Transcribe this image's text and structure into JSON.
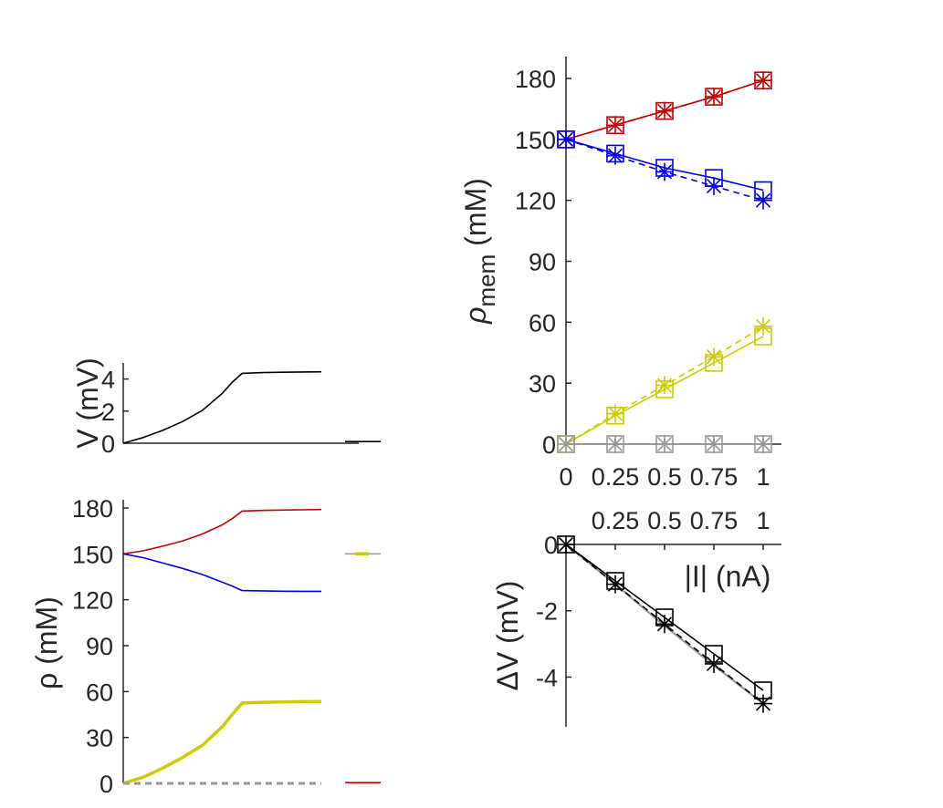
{
  "colors": {
    "red": "#c00000",
    "blue": "#0000e6",
    "yellow": "#cccc00",
    "gray": "#999999",
    "black": "#000000",
    "axis": "#262626"
  },
  "chart_data": [
    {
      "id": "voltage_trace",
      "type": "line",
      "title": "",
      "xlabel": "",
      "ylabel": "V (mV)",
      "ylim": [
        0,
        5
      ],
      "yticks": [
        "0",
        "2",
        "4"
      ],
      "grid": false,
      "series": [
        {
          "color": "black",
          "x": [
            0,
            0.1,
            0.2,
            0.3,
            0.4,
            0.5,
            0.55,
            0.6,
            0.7,
            0.8,
            0.9,
            1.0
          ],
          "y": [
            0,
            0.35,
            0.8,
            1.35,
            2.05,
            3.1,
            3.8,
            4.35,
            4.4,
            4.42,
            4.44,
            4.45
          ]
        },
        {
          "color": "black",
          "x": [
            1.12,
            1.3
          ],
          "y": [
            0.1,
            0.1
          ]
        }
      ]
    },
    {
      "id": "concentration_trace",
      "type": "line",
      "title": "",
      "xlabel": "",
      "ylabel": "ρ (mM)",
      "ylim": [
        0,
        180
      ],
      "yticks": [
        "0",
        "30",
        "60",
        "90",
        "120",
        "150",
        "180"
      ],
      "grid": false,
      "series": [
        {
          "color": "red",
          "x": [
            0,
            0.1,
            0.2,
            0.3,
            0.4,
            0.5,
            0.55,
            0.6,
            0.7,
            0.8,
            0.9,
            1.0
          ],
          "y": [
            150,
            152,
            155,
            158.5,
            163,
            169,
            173,
            178,
            178.4,
            178.6,
            178.8,
            179
          ]
        },
        {
          "color": "blue",
          "x": [
            0,
            0.1,
            0.2,
            0.3,
            0.4,
            0.5,
            0.55,
            0.6,
            0.7,
            0.8,
            0.9,
            1.0
          ],
          "y": [
            150,
            147.5,
            144,
            140.5,
            136.5,
            131.5,
            129,
            126,
            125.8,
            125.6,
            125.5,
            125.5
          ]
        },
        {
          "color": "yellow",
          "x": [
            0,
            0.1,
            0.2,
            0.3,
            0.4,
            0.5,
            0.55,
            0.6,
            0.7,
            0.8,
            0.9,
            1.0
          ],
          "y": [
            0,
            4,
            10,
            17,
            25,
            37,
            45,
            52.5,
            53,
            53.2,
            53.4,
            53.5
          ]
        },
        {
          "color": "gray",
          "dashed": true,
          "x": [
            0,
            1.0
          ],
          "y": [
            0,
            0
          ]
        },
        {
          "color": "red",
          "x": [
            1.12,
            1.3
          ],
          "y": [
            0.5,
            0.5
          ]
        },
        {
          "color": "gray",
          "x": [
            1.12,
            1.17
          ],
          "y": [
            150,
            150
          ]
        },
        {
          "color": "yellow",
          "x": [
            1.17,
            1.24
          ],
          "y": [
            150,
            150
          ]
        },
        {
          "color": "gray",
          "x": [
            1.24,
            1.3
          ],
          "y": [
            150,
            150
          ]
        }
      ]
    },
    {
      "id": "rho_mem_vs_current",
      "type": "line",
      "title": "",
      "xlabel": "",
      "ylabel": "ρ",
      "ylabel_sub": "mem",
      "ylabel_unit": " (mM)",
      "xlim": [
        0,
        1
      ],
      "ylim": [
        0,
        180
      ],
      "xticks": [
        "0",
        "0.25",
        "0.5",
        "0.75",
        "1"
      ],
      "yticks": [
        "0",
        "30",
        "60",
        "90",
        "120",
        "150",
        "180"
      ],
      "grid": false,
      "x": [
        0,
        0.25,
        0.5,
        0.75,
        1
      ],
      "series": [
        {
          "color": "red",
          "marker": "square",
          "values": [
            150,
            157,
            164,
            171,
            179
          ]
        },
        {
          "color": "red",
          "marker": "star",
          "dashed": true,
          "values": [
            150,
            157,
            164,
            171,
            179
          ]
        },
        {
          "color": "blue",
          "marker": "square",
          "values": [
            150,
            143,
            136,
            131,
            125
          ]
        },
        {
          "color": "blue",
          "marker": "star",
          "dashed": true,
          "values": [
            150,
            142,
            134,
            127,
            120
          ]
        },
        {
          "color": "yellow",
          "marker": "square",
          "values": [
            0,
            14,
            27,
            40,
            53
          ]
        },
        {
          "color": "yellow",
          "marker": "star",
          "dashed": true,
          "values": [
            0,
            15,
            29,
            43,
            58
          ]
        },
        {
          "color": "gray",
          "marker": "square",
          "values": [
            0,
            0,
            0,
            0,
            0
          ]
        },
        {
          "color": "gray",
          "marker": "star",
          "dashed": true,
          "values": [
            0,
            0,
            0,
            0,
            0
          ]
        }
      ]
    },
    {
      "id": "delta_v_vs_current",
      "type": "line",
      "title": "",
      "xlabel": "|I| (nA)",
      "ylabel": "ΔV (mV)",
      "xlim": [
        0,
        1
      ],
      "ylim": [
        -5.5,
        0
      ],
      "xticks": [
        "0.25",
        "0.5",
        "0.75",
        "1"
      ],
      "yticks": [
        "0",
        "-2",
        "-4"
      ],
      "grid": false,
      "x": [
        0,
        0.25,
        0.5,
        0.75,
        1
      ],
      "series": [
        {
          "color": "gray",
          "values": [
            0,
            -1.2,
            -2.45,
            -3.65,
            -4.8
          ]
        },
        {
          "color": "black",
          "marker": "square",
          "values": [
            0,
            -1.1,
            -2.2,
            -3.3,
            -4.4
          ]
        },
        {
          "color": "black",
          "marker": "star",
          "dashed": true,
          "values": [
            0,
            -1.2,
            -2.4,
            -3.6,
            -4.8
          ]
        }
      ]
    }
  ]
}
